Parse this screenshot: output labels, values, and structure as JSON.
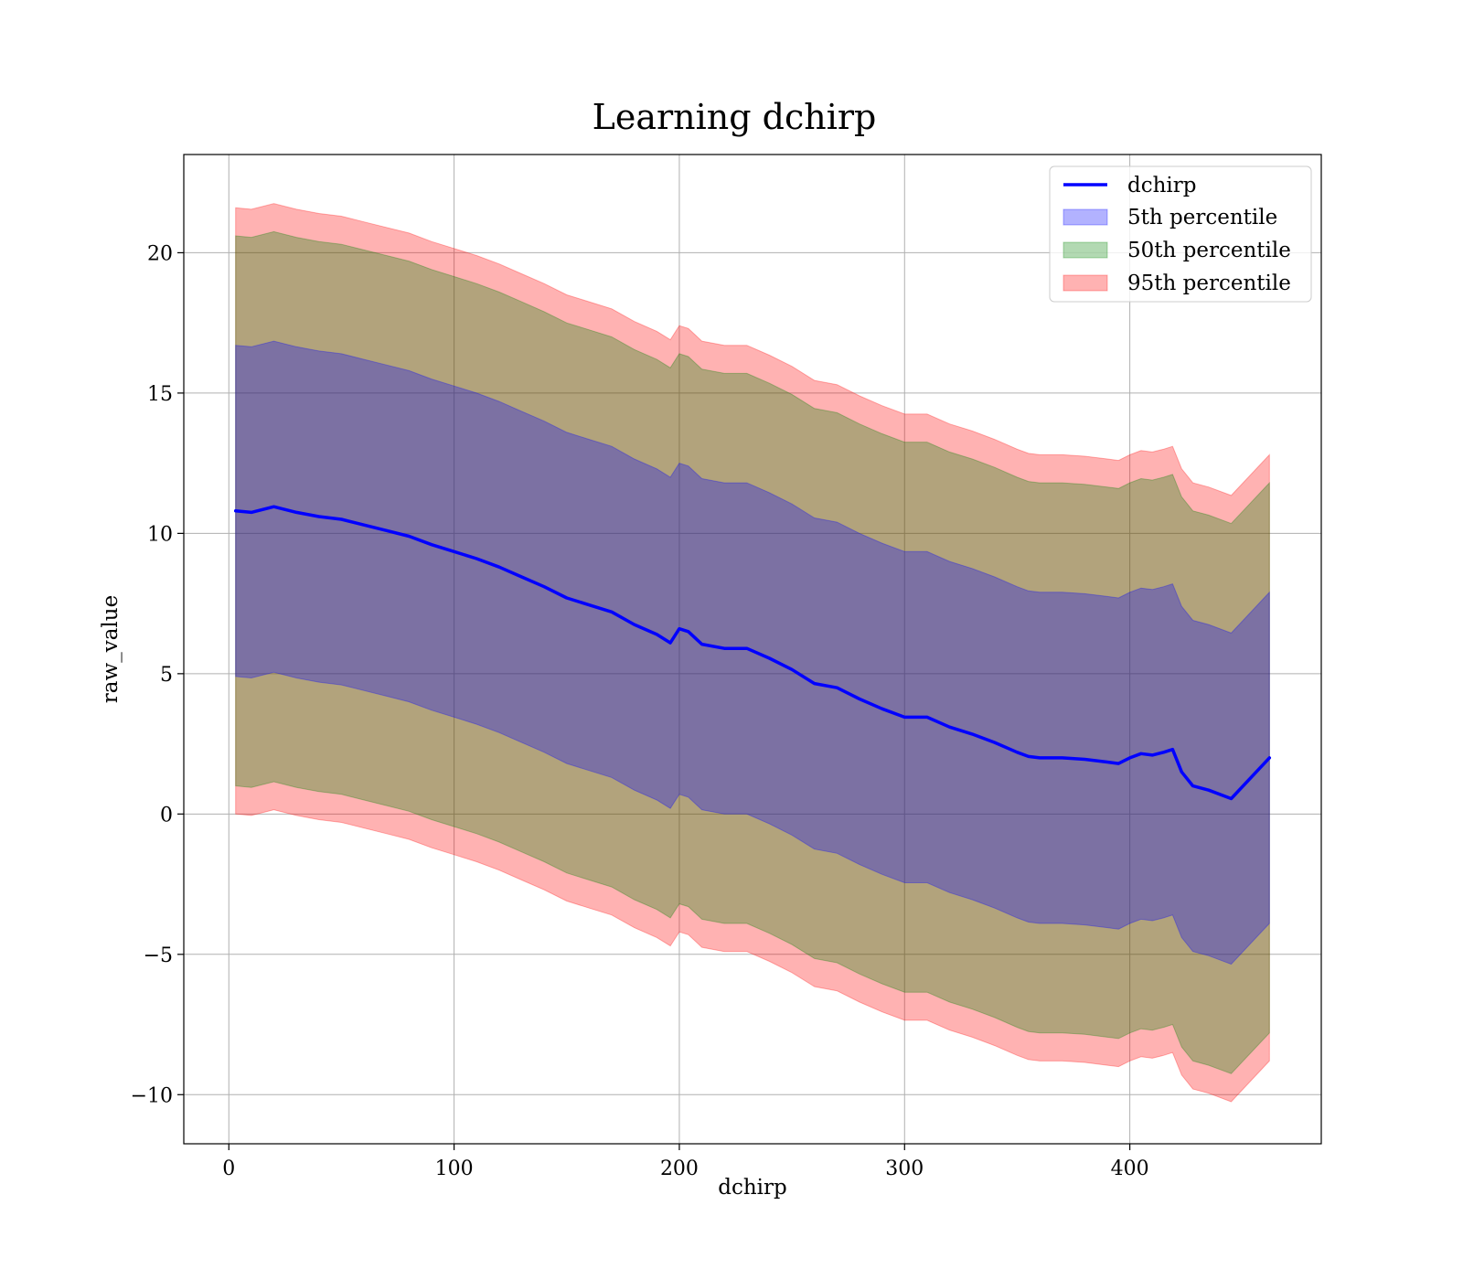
{
  "chart_data": {
    "type": "area",
    "title": "Learning dchirp",
    "xlabel": "dchirp",
    "ylabel": "raw_value",
    "xlim": [
      -20,
      485
    ],
    "ylim": [
      -11.75,
      23.5
    ],
    "xticks": [
      0,
      100,
      200,
      300,
      400
    ],
    "xtick_labels": [
      "0",
      "100",
      "200",
      "300",
      "400"
    ],
    "yticks": [
      -10,
      -5,
      0,
      5,
      10,
      15,
      20
    ],
    "ytick_labels": [
      "−10",
      "−5",
      "0",
      "5",
      "10",
      "15",
      "20"
    ],
    "grid": true,
    "legend_placement": "top-right",
    "x": [
      3,
      10,
      20,
      30,
      40,
      50,
      60,
      70,
      80,
      90,
      100,
      110,
      120,
      130,
      140,
      150,
      160,
      170,
      180,
      190,
      196,
      200,
      204,
      210,
      220,
      230,
      240,
      250,
      260,
      270,
      280,
      290,
      300,
      310,
      320,
      330,
      340,
      350,
      355,
      360,
      370,
      380,
      390,
      395,
      400,
      405,
      410,
      415,
      419,
      423,
      428,
      435,
      445,
      462
    ],
    "series": [
      {
        "name": "dchirp",
        "kind": "line",
        "color": "#0000ff",
        "values": [
          10.8,
          10.75,
          10.95,
          10.75,
          10.6,
          10.5,
          10.3,
          10.1,
          9.9,
          9.6,
          9.35,
          9.1,
          8.8,
          8.45,
          8.1,
          7.7,
          7.45,
          7.2,
          6.75,
          6.4,
          6.1,
          6.6,
          6.5,
          6.05,
          5.9,
          5.9,
          5.55,
          5.15,
          4.65,
          4.5,
          4.1,
          3.75,
          3.45,
          3.45,
          3.1,
          2.85,
          2.55,
          2.2,
          2.05,
          2.0,
          2.0,
          1.95,
          1.85,
          1.8,
          2.0,
          2.15,
          2.1,
          2.2,
          2.3,
          1.5,
          1.0,
          0.85,
          0.55,
          2.0
        ]
      },
      {
        "name": "5th percentile",
        "kind": "band",
        "color": "#0000ff",
        "lower": [
          4.9,
          4.85,
          5.05,
          4.85,
          4.7,
          4.6,
          4.4,
          4.2,
          4.0,
          3.7,
          3.45,
          3.2,
          2.9,
          2.55,
          2.2,
          1.8,
          1.55,
          1.3,
          0.85,
          0.5,
          0.2,
          0.7,
          0.6,
          0.15,
          0.0,
          0.0,
          -0.35,
          -0.75,
          -1.25,
          -1.4,
          -1.8,
          -2.15,
          -2.45,
          -2.45,
          -2.8,
          -3.05,
          -3.35,
          -3.7,
          -3.85,
          -3.9,
          -3.9,
          -3.95,
          -4.05,
          -4.1,
          -3.9,
          -3.75,
          -3.8,
          -3.7,
          -3.6,
          -4.4,
          -4.9,
          -5.05,
          -5.35,
          -3.9
        ],
        "upper": [
          16.7,
          16.65,
          16.85,
          16.65,
          16.5,
          16.4,
          16.2,
          16.0,
          15.8,
          15.5,
          15.25,
          15.0,
          14.7,
          14.35,
          14.0,
          13.6,
          13.35,
          13.1,
          12.65,
          12.3,
          12.0,
          12.5,
          12.4,
          11.95,
          11.8,
          11.8,
          11.45,
          11.05,
          10.55,
          10.4,
          10.0,
          9.65,
          9.35,
          9.35,
          9.0,
          8.75,
          8.45,
          8.1,
          7.95,
          7.9,
          7.9,
          7.85,
          7.75,
          7.7,
          7.9,
          8.05,
          8.0,
          8.1,
          8.2,
          7.4,
          6.9,
          6.75,
          6.45,
          7.9
        ]
      },
      {
        "name": "50th percentile",
        "kind": "band",
        "color": "#008000",
        "lower": [
          1.0,
          0.95,
          1.15,
          0.95,
          0.8,
          0.7,
          0.5,
          0.3,
          0.1,
          -0.2,
          -0.45,
          -0.7,
          -1.0,
          -1.35,
          -1.7,
          -2.1,
          -2.35,
          -2.6,
          -3.05,
          -3.4,
          -3.7,
          -3.2,
          -3.3,
          -3.75,
          -3.9,
          -3.9,
          -4.25,
          -4.65,
          -5.15,
          -5.3,
          -5.7,
          -6.05,
          -6.35,
          -6.35,
          -6.7,
          -6.95,
          -7.25,
          -7.6,
          -7.75,
          -7.8,
          -7.8,
          -7.85,
          -7.95,
          -8.0,
          -7.8,
          -7.65,
          -7.7,
          -7.6,
          -7.5,
          -8.3,
          -8.8,
          -8.95,
          -9.25,
          -7.8
        ],
        "upper": [
          20.6,
          20.55,
          20.75,
          20.55,
          20.4,
          20.3,
          20.1,
          19.9,
          19.7,
          19.4,
          19.15,
          18.9,
          18.6,
          18.25,
          17.9,
          17.5,
          17.25,
          17.0,
          16.55,
          16.2,
          15.9,
          16.4,
          16.3,
          15.85,
          15.7,
          15.7,
          15.35,
          14.95,
          14.45,
          14.3,
          13.9,
          13.55,
          13.25,
          13.25,
          12.9,
          12.65,
          12.35,
          12.0,
          11.85,
          11.8,
          11.8,
          11.75,
          11.65,
          11.6,
          11.8,
          11.95,
          11.9,
          12.0,
          12.1,
          11.3,
          10.8,
          10.65,
          10.35,
          11.8
        ]
      },
      {
        "name": "95th percentile",
        "kind": "band",
        "color": "#ff0000",
        "lower": [
          0.0,
          -0.05,
          0.15,
          -0.05,
          -0.2,
          -0.3,
          -0.5,
          -0.7,
          -0.9,
          -1.2,
          -1.45,
          -1.7,
          -2.0,
          -2.35,
          -2.7,
          -3.1,
          -3.35,
          -3.6,
          -4.05,
          -4.4,
          -4.7,
          -4.2,
          -4.3,
          -4.75,
          -4.9,
          -4.9,
          -5.25,
          -5.65,
          -6.15,
          -6.3,
          -6.7,
          -7.05,
          -7.35,
          -7.35,
          -7.7,
          -7.95,
          -8.25,
          -8.6,
          -8.75,
          -8.8,
          -8.8,
          -8.85,
          -8.95,
          -9.0,
          -8.8,
          -8.65,
          -8.7,
          -8.6,
          -8.5,
          -9.3,
          -9.8,
          -9.95,
          -10.25,
          -8.8
        ],
        "upper": [
          21.6,
          21.55,
          21.75,
          21.55,
          21.4,
          21.3,
          21.1,
          20.9,
          20.7,
          20.4,
          20.15,
          19.9,
          19.6,
          19.25,
          18.9,
          18.5,
          18.25,
          18.0,
          17.55,
          17.2,
          16.9,
          17.4,
          17.3,
          16.85,
          16.7,
          16.7,
          16.35,
          15.95,
          15.45,
          15.3,
          14.9,
          14.55,
          14.25,
          14.25,
          13.9,
          13.65,
          13.35,
          13.0,
          12.85,
          12.8,
          12.8,
          12.75,
          12.65,
          12.6,
          12.8,
          12.95,
          12.9,
          13.0,
          13.1,
          12.3,
          11.8,
          11.65,
          11.35,
          12.8
        ]
      }
    ]
  }
}
